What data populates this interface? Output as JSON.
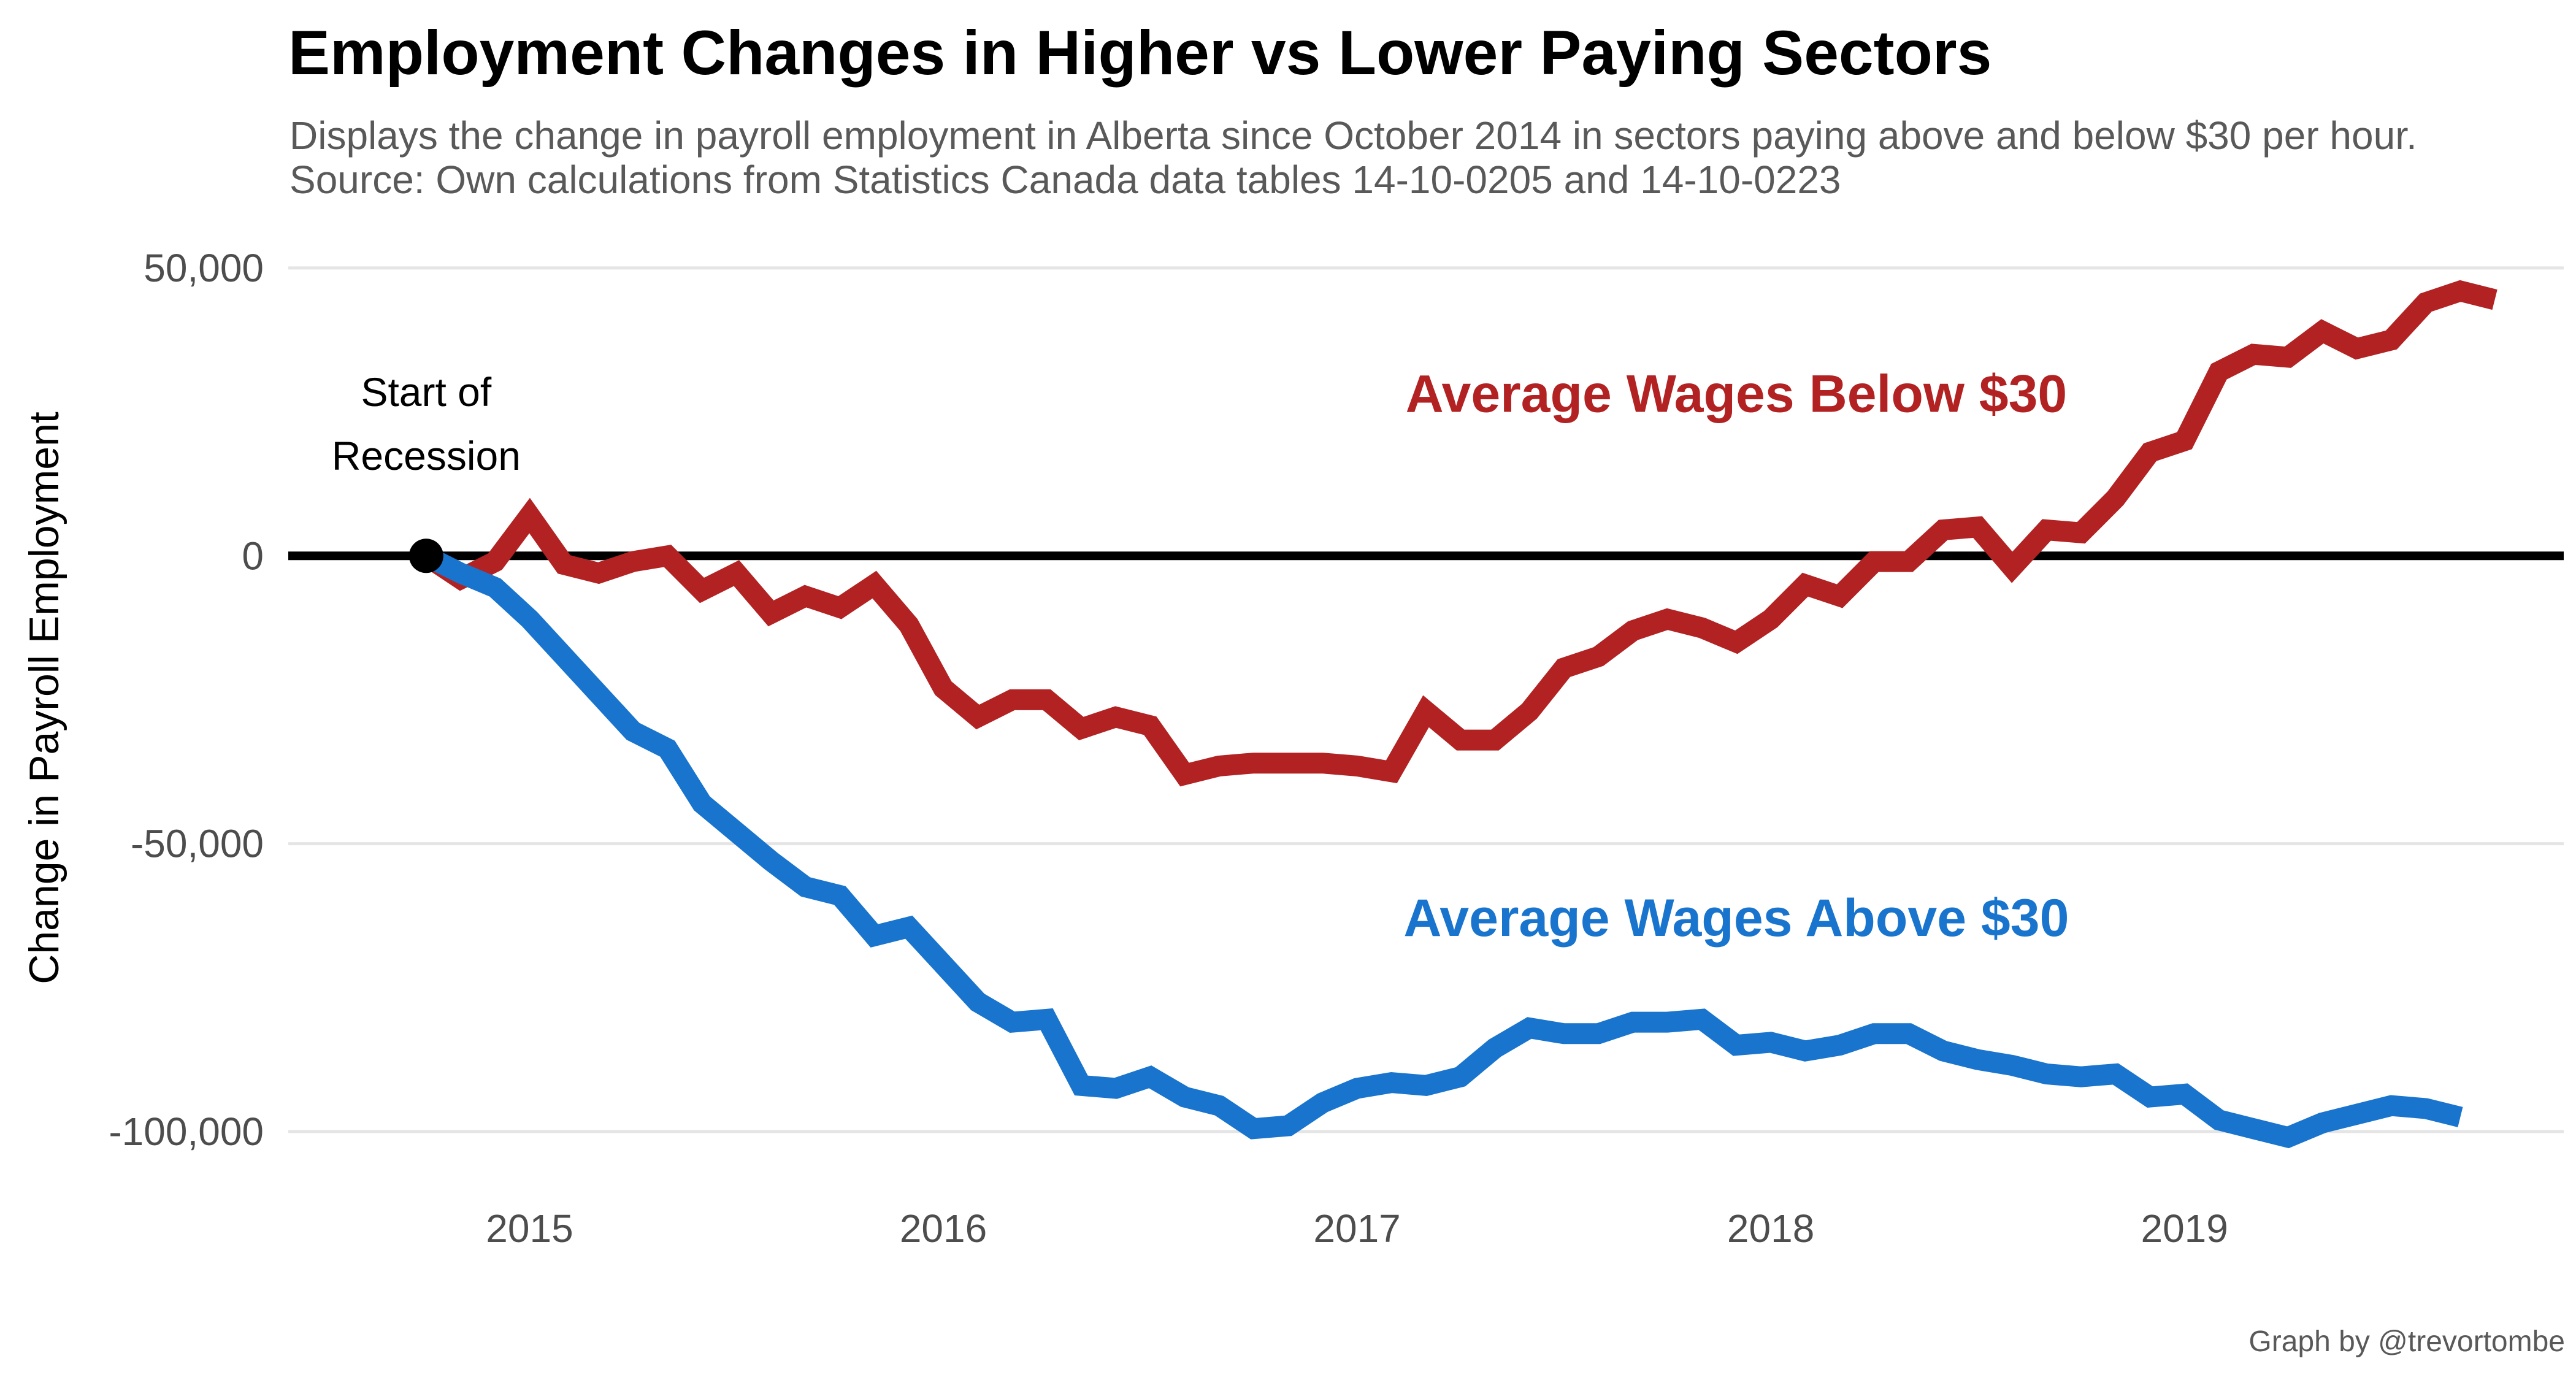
{
  "chart_data": {
    "type": "line",
    "title": "Employment Changes in Higher vs Lower Paying Sectors",
    "subtitle_lines": [
      "Displays the change in payroll employment in Alberta since October 2014 in sectors paying above and below $30 per hour.",
      "Source: Own calculations from Statistics Canada data tables 14-10-0205 and 14-10-0223"
    ],
    "xlabel": "",
    "ylabel": "Change in Payroll Employment",
    "caption": "Graph by @trevortombe",
    "x_start": "2014-10",
    "x_ticks": [
      "2015",
      "2016",
      "2017",
      "2018",
      "2019"
    ],
    "xlim": [
      "2014-06",
      "2019-12"
    ],
    "y_ticks": [
      {
        "value": 50000,
        "label": "50,000"
      },
      {
        "value": 0,
        "label": "0"
      },
      {
        "value": -50000,
        "label": "-50,000"
      },
      {
        "value": -100000,
        "label": "-100,000"
      }
    ],
    "ylim": [
      -108000,
      55000
    ],
    "grid": "horizontal",
    "legend": "none",
    "zero_line": {
      "color": "#000000"
    },
    "annotations": [
      {
        "text_lines": [
          "Start of",
          "Recession"
        ],
        "date": "2014-10",
        "value": 0,
        "marker": "point",
        "color": "#000000"
      },
      {
        "text": "Average Wages Below $30",
        "series": "Average Wages Below $30",
        "color": "#B22222"
      },
      {
        "text": "Average Wages Above $30",
        "series": "Average Wages Above $30",
        "color": "#1874CD"
      }
    ],
    "series": [
      {
        "name": "Average Wages Below $30",
        "color": "#B22222",
        "label_date": "2017-12",
        "label_value": 25000,
        "values": [
          0,
          -4000,
          -1000,
          7000,
          -1500,
          -3000,
          -1000,
          0,
          -6000,
          -3000,
          -10000,
          -7000,
          -9000,
          -5000,
          -12000,
          -23000,
          -28000,
          -25000,
          -25000,
          -30000,
          -28000,
          -29500,
          -38000,
          -36500,
          -36000,
          -36000,
          -36000,
          -36500,
          -37500,
          -27000,
          -32000,
          -32000,
          -27000,
          -19500,
          -17500,
          -13000,
          -11000,
          -12500,
          -15000,
          -11000,
          -5000,
          -7000,
          -1000,
          -1000,
          4500,
          5000,
          -2000,
          4500,
          4000,
          10000,
          18000,
          20000,
          32000,
          35000,
          34500,
          39000,
          36000,
          37500,
          44000,
          46000,
          44500
        ]
      },
      {
        "name": "Average Wages Above $30",
        "color": "#1874CD",
        "label_date": "2017-12",
        "label_value": -66000,
        "values": [
          0,
          -3000,
          -5500,
          -11000,
          -17500,
          -24000,
          -30500,
          -33500,
          -43000,
          -48000,
          -53000,
          -57500,
          -59000,
          -66000,
          -64500,
          -71000,
          -77500,
          -81000,
          -80500,
          -92000,
          -92500,
          -90500,
          -94000,
          -95500,
          -99500,
          -99000,
          -95000,
          -92500,
          -91500,
          -92000,
          -90500,
          -85500,
          -82000,
          -83000,
          -83000,
          -81000,
          -81000,
          -80500,
          -85000,
          -84500,
          -86000,
          -85000,
          -83000,
          -83000,
          -86000,
          -87500,
          -88500,
          -90000,
          -90500,
          -90000,
          -94000,
          -93500,
          -98000,
          -99500,
          -101000,
          -98500,
          -97000,
          -95500,
          -96000,
          -97500
        ]
      }
    ]
  }
}
